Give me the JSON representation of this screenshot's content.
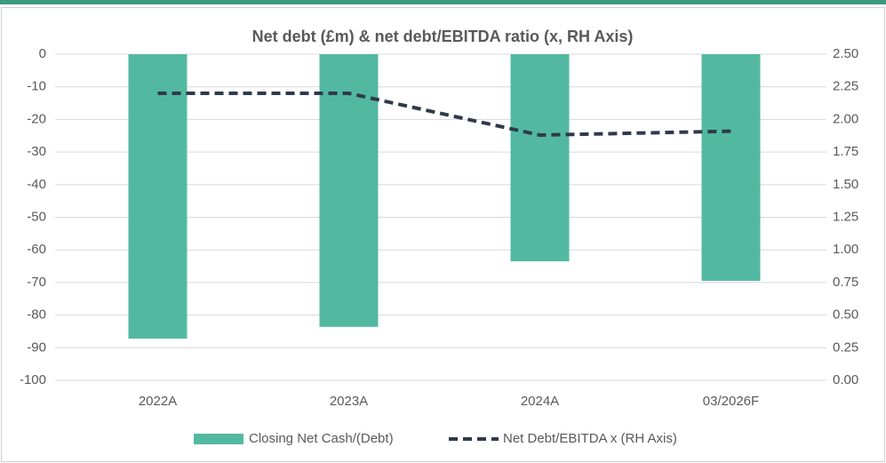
{
  "chart_data": {
    "type": "bar",
    "title": "Net debt (£m) & net debt/EBITDA ratio (x, RH Axis)",
    "categories": [
      "2022A",
      "2023A",
      "2024A",
      "03/2026F"
    ],
    "series": [
      {
        "name": "Closing Net Cash/(Debt)",
        "type": "bar",
        "color": "#52b9a0",
        "values": [
          -87.2,
          -83.6,
          -63.5,
          -69.5
        ]
      },
      {
        "name": "Net Debt/EBITDA x (RH Axis)",
        "type": "line",
        "axis": "y2",
        "color": "#2f3a4a",
        "dashed": true,
        "values": [
          2.2,
          2.2,
          1.88,
          1.91
        ]
      }
    ],
    "ylim": [
      -100,
      0
    ],
    "yticks": [
      0,
      -10,
      -20,
      -30,
      -40,
      -50,
      -60,
      -70,
      -80,
      -90,
      -100
    ],
    "y2lim": [
      0,
      2.5
    ],
    "y2ticks": [
      {
        "value": 2.5,
        "label": "2.50"
      },
      {
        "value": 2.25,
        "label": "2.25"
      },
      {
        "value": 2,
        "label": "2.00"
      },
      {
        "value": 1.75,
        "label": "1.75"
      },
      {
        "value": 1.5,
        "label": "1.50"
      },
      {
        "value": 1.25,
        "label": "1.25"
      },
      {
        "value": 1,
        "label": "1.00"
      },
      {
        "value": 0.75,
        "label": "0.75"
      },
      {
        "value": 0.5,
        "label": "0.50"
      },
      {
        "value": 0.25,
        "label": "0.25"
      },
      {
        "value": 0,
        "label": "0.00"
      }
    ],
    "grid": true,
    "legend": "bottom"
  }
}
